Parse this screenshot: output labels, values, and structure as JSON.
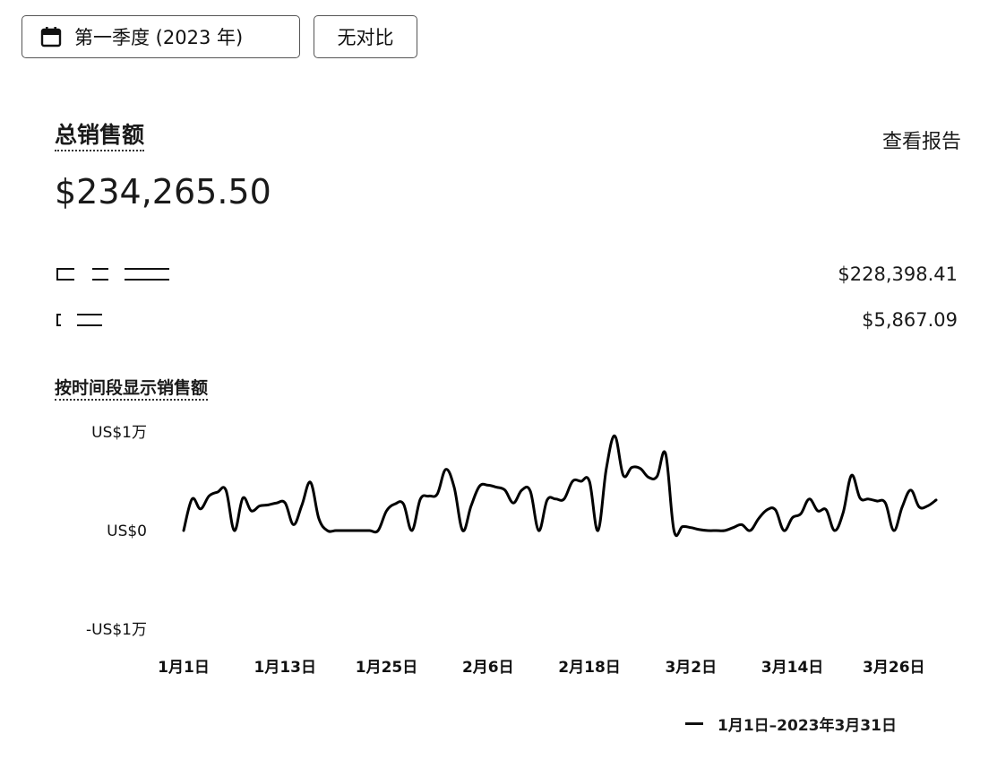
{
  "header": {
    "period_label": "第一季度 (2023 年)",
    "compare_label": "无对比"
  },
  "summary": {
    "title": "总销售额",
    "view_report": "查看报告",
    "total": "$234,265.50",
    "rows": [
      {
        "label": "",
        "value": "$228,398.41"
      },
      {
        "label": "",
        "value": "$5,867.09"
      }
    ]
  },
  "chart_section": {
    "title": "按时间段显示销售额",
    "legend_label": "1月1日–2023年3月31日"
  },
  "chart_data": {
    "type": "line",
    "title": "按时间段显示销售额",
    "y_tick_labels": [
      "US$1万",
      "US$0",
      "-US$1万"
    ],
    "ylim": [
      -10000,
      10000
    ],
    "x_tick_labels": [
      "1月1日",
      "1月13日",
      "1月25日",
      "2月6日",
      "2月18日",
      "3月2日",
      "3月14日",
      "3月26日"
    ],
    "x": [
      "1月1日",
      "1月2日",
      "1月3日",
      "1月4日",
      "1月5日",
      "1月6日",
      "1月7日",
      "1月8日",
      "1月9日",
      "1月10日",
      "1月11日",
      "1月12日",
      "1月13日",
      "1月14日",
      "1月15日",
      "1月16日",
      "1月17日",
      "1月18日",
      "1月19日",
      "1月20日",
      "1月21日",
      "1月22日",
      "1月23日",
      "1月24日",
      "1月25日",
      "1月26日",
      "1月27日",
      "1月28日",
      "1月29日",
      "1月30日",
      "1月31日",
      "2月1日",
      "2月2日",
      "2月3日",
      "2月4日",
      "2月5日",
      "2月6日",
      "2月7日",
      "2月8日",
      "2月9日",
      "2月10日",
      "2月11日",
      "2月12日",
      "2月13日",
      "2月14日",
      "2月15日",
      "2月16日",
      "2月17日",
      "2月18日",
      "2月19日",
      "2月20日",
      "2月21日",
      "2月22日",
      "2月23日",
      "2月24日",
      "2月25日",
      "2月26日",
      "2月27日",
      "2月28日",
      "3月1日",
      "3月2日",
      "3月3日",
      "3月4日",
      "3月5日",
      "3月6日",
      "3月7日",
      "3月8日",
      "3月9日",
      "3月10日",
      "3月11日",
      "3月12日",
      "3月13日",
      "3月14日",
      "3月15日",
      "3月16日",
      "3月17日",
      "3月18日",
      "3月19日",
      "3月20日",
      "3月21日",
      "3月22日",
      "3月23日",
      "3月24日",
      "3月25日",
      "3月26日",
      "3月27日",
      "3月28日",
      "3月29日",
      "3月30日",
      "3月31日"
    ],
    "series": [
      {
        "values": [
          0,
          3200,
          2200,
          3500,
          3900,
          4100,
          0,
          3300,
          2000,
          2500,
          2600,
          2800,
          2800,
          600,
          2600,
          4900,
          1200,
          0,
          0,
          0,
          0,
          0,
          0,
          0,
          2000,
          2700,
          2700,
          0,
          3200,
          3500,
          3700,
          6200,
          4400,
          0,
          2500,
          4500,
          4600,
          4400,
          4100,
          2800,
          4100,
          4000,
          0,
          3100,
          3200,
          3200,
          5000,
          5000,
          5000,
          0,
          6300,
          9600,
          5600,
          6400,
          6300,
          5400,
          5500,
          7800,
          0,
          400,
          300,
          100,
          0,
          0,
          0,
          300,
          600,
          0,
          1200,
          2100,
          2100,
          0,
          1300,
          1700,
          3200,
          2000,
          2100,
          0,
          1800,
          5600,
          3300,
          3200,
          3000,
          2800,
          0,
          2400,
          4100,
          2400,
          2500,
          3100
        ]
      }
    ],
    "grid": false,
    "legend": "bottom-right"
  }
}
